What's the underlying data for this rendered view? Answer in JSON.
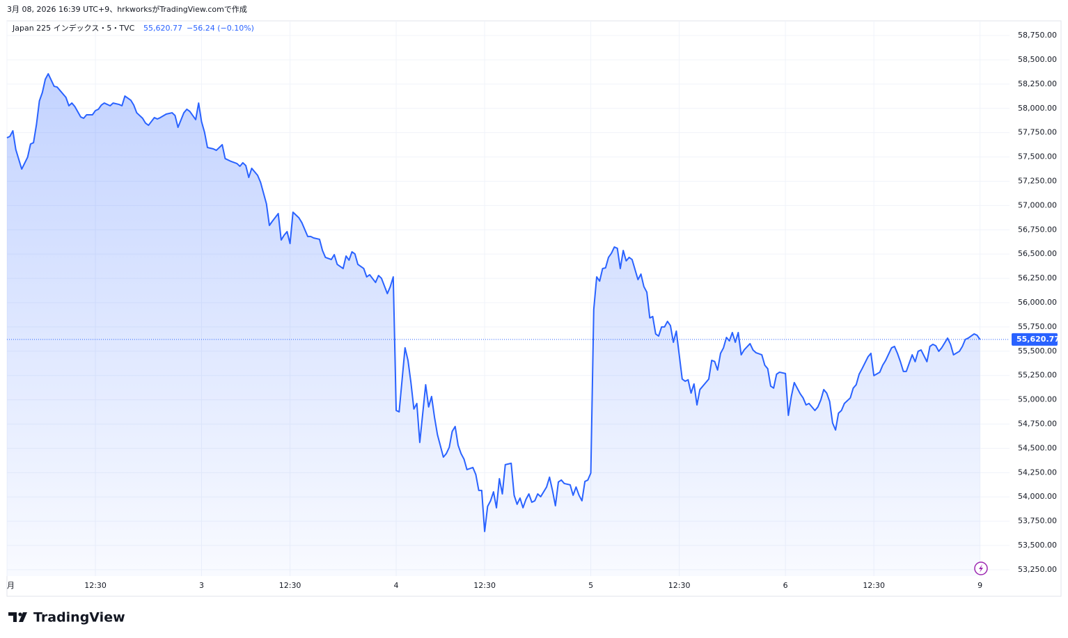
{
  "caption": "3月 08, 2026 16:39 UTC+9、hrkworksがTradingView.comで作成",
  "header": {
    "symbol": "Japan 225 インデックス・5・TVC",
    "change": "−56.24 (−0.10%)"
  },
  "footer": {
    "brand": "TradingView"
  },
  "chart_data": {
    "type": "area",
    "x": [
      0,
      1,
      2,
      3,
      5,
      7,
      8,
      9,
      10,
      11,
      12,
      13,
      14,
      16,
      17,
      18,
      20,
      21,
      22,
      23,
      25,
      26,
      27,
      29,
      30,
      31,
      32,
      33,
      35,
      36,
      38,
      39,
      40,
      42,
      43,
      44,
      46,
      47,
      48,
      50,
      51,
      52,
      54,
      56,
      57,
      58,
      60,
      61,
      62,
      64,
      65,
      66,
      67,
      68,
      70,
      71,
      73,
      74,
      76,
      78,
      79,
      80,
      81,
      82,
      83,
      85,
      86,
      88,
      89,
      90,
      92,
      93,
      94,
      95,
      96,
      97,
      99,
      100,
      102,
      103,
      104,
      106,
      107,
      108,
      110,
      111,
      112,
      114,
      115,
      116,
      117,
      118,
      119,
      121,
      122,
      123,
      125,
      126,
      127,
      129,
      130,
      131,
      132,
      133,
      135,
      136,
      137,
      138,
      139,
      140,
      142,
      143,
      144,
      145,
      146,
      148,
      149,
      150,
      151,
      152,
      153,
      154,
      155,
      156,
      158,
      159,
      160,
      161,
      162,
      163,
      164,
      165,
      166,
      167,
      168,
      169,
      171,
      172,
      173,
      174,
      175,
      176,
      177,
      178,
      179,
      180,
      181,
      183,
      184,
      185,
      186,
      187,
      188,
      189,
      191,
      192,
      193,
      194,
      195,
      196,
      197,
      198,
      199,
      200,
      201,
      202,
      203,
      204,
      205,
      206,
      207,
      208,
      209,
      210,
      211,
      212,
      214,
      215,
      216,
      217,
      218,
      219,
      220,
      221,
      222,
      223,
      224,
      225,
      226,
      227,
      229,
      230,
      231,
      232,
      233,
      234,
      235,
      237,
      238,
      239,
      240,
      241,
      242,
      243,
      244,
      245,
      246,
      247,
      248,
      249,
      250,
      252,
      253,
      254,
      256,
      257,
      258,
      259,
      260,
      261,
      262,
      264,
      265,
      266,
      267,
      268,
      269,
      270,
      271,
      272,
      274,
      275,
      276,
      277,
      278,
      279,
      280,
      281,
      282,
      283,
      284,
      286,
      287,
      288,
      289,
      290,
      292,
      293,
      294,
      296,
      297,
      298,
      300,
      301,
      302,
      303,
      304,
      305,
      307,
      308,
      309,
      310,
      312,
      313,
      314,
      315,
      316,
      317,
      319,
      320,
      321,
      323,
      324,
      325,
      326,
      328,
      329,
      330
    ],
    "series": [
      {
        "color": "#2962ff",
        "values": [
          57697,
          57712,
          57769,
          57576,
          57375,
          57497,
          57633,
          57647,
          57833,
          58077,
          58163,
          58299,
          58356,
          58227,
          58220,
          58184,
          58113,
          58027,
          58055,
          58020,
          57912,
          57898,
          57934,
          57934,
          57977,
          57991,
          58034,
          58055,
          58027,
          58055,
          58041,
          58027,
          58127,
          58084,
          58034,
          57955,
          57898,
          57848,
          57826,
          57905,
          57891,
          57905,
          57941,
          57955,
          57927,
          57805,
          57955,
          57991,
          57969,
          57884,
          58055,
          57862,
          57755,
          57597,
          57583,
          57568,
          57626,
          57483,
          57454,
          57432,
          57404,
          57440,
          57411,
          57289,
          57383,
          57311,
          57239,
          57017,
          56795,
          56838,
          56917,
          56645,
          56695,
          56731,
          56609,
          56931,
          56874,
          56824,
          56681,
          56681,
          56666,
          56652,
          56537,
          56466,
          56444,
          56494,
          56394,
          56351,
          56480,
          56437,
          56523,
          56502,
          56394,
          56351,
          56265,
          56287,
          56208,
          56279,
          56251,
          56093,
          56165,
          56265,
          54890,
          54876,
          55535,
          55406,
          55177,
          54905,
          54962,
          54561,
          55155,
          54926,
          55034,
          54819,
          54640,
          54410,
          54446,
          54511,
          54675,
          54725,
          54532,
          54446,
          54389,
          54281,
          54303,
          54231,
          54067,
          54067,
          53644,
          53902,
          53960,
          54052,
          53888,
          54188,
          54031,
          54332,
          54346,
          54017,
          53924,
          53988,
          53888,
          53974,
          54031,
          53945,
          53960,
          54031,
          54002,
          54102,
          54203,
          54067,
          53909,
          54153,
          54174,
          54138,
          54124,
          54017,
          54102,
          54017,
          53960,
          54159,
          54174,
          54246,
          55929,
          56265,
          56222,
          56351,
          56358,
          56466,
          56509,
          56573,
          56559,
          56351,
          56537,
          56430,
          56466,
          56444,
          56237,
          56294,
          56165,
          56108,
          55843,
          55857,
          55678,
          55656,
          55750,
          55750,
          55807,
          55764,
          55592,
          55707,
          55213,
          55191,
          55206,
          55069,
          55163,
          54947,
          55105,
          55177,
          55213,
          55406,
          55394,
          55306,
          55478,
          55535,
          55642,
          55606,
          55692,
          55592,
          55692,
          55463,
          55513,
          55578,
          55513,
          55485,
          55463,
          55356,
          55320,
          55141,
          55120,
          55263,
          55284,
          55270,
          54840,
          55034,
          55177,
          55120,
          55063,
          55019,
          54947,
          54962,
          54890,
          54926,
          54998,
          55105,
          55069,
          54983,
          54761,
          54689,
          54862,
          54890,
          54962,
          55019,
          55120,
          55155,
          55263,
          55320,
          55442,
          55478,
          55249,
          55284,
          55356,
          55406,
          55535,
          55549,
          55478,
          55392,
          55292,
          55292,
          55463,
          55392,
          55499,
          55513,
          55392,
          55549,
          55571,
          55556,
          55499,
          55535,
          55635,
          55571,
          55463,
          55499,
          55549,
          55621,
          55635,
          55678,
          55664,
          55620.77
        ]
      }
    ],
    "last_price": {
      "value": 55620.77,
      "label": "55,620.77"
    },
    "xlim": [
      0,
      340
    ],
    "xticks": [
      {
        "value": 0,
        "label": "月"
      },
      {
        "value": 30,
        "label": "12:30"
      },
      {
        "value": 66,
        "label": "3"
      },
      {
        "value": 96,
        "label": "12:30"
      },
      {
        "value": 132,
        "label": "4"
      },
      {
        "value": 162,
        "label": "12:30"
      },
      {
        "value": 198,
        "label": "5"
      },
      {
        "value": 228,
        "label": "12:30"
      },
      {
        "value": 264,
        "label": "6"
      },
      {
        "value": 294,
        "label": "12:30"
      },
      {
        "value": 330,
        "label": "9"
      }
    ],
    "ylim": [
      53185,
      58865
    ],
    "yticks": [
      {
        "value": 53250,
        "label": "53,250.00"
      },
      {
        "value": 53500,
        "label": "53,500.00"
      },
      {
        "value": 53750,
        "label": "53,750.00"
      },
      {
        "value": 54000,
        "label": "54,000.00"
      },
      {
        "value": 54250,
        "label": "54,250.00"
      },
      {
        "value": 54500,
        "label": "54,500.00"
      },
      {
        "value": 54750,
        "label": "54,750.00"
      },
      {
        "value": 55000,
        "label": "55,000.00"
      },
      {
        "value": 55250,
        "label": "55,250.00"
      },
      {
        "value": 55500,
        "label": "55,500.00"
      },
      {
        "value": 55750,
        "label": "55,750.00"
      },
      {
        "value": 56000,
        "label": "56,000.00"
      },
      {
        "value": 56250,
        "label": "56,250.00"
      },
      {
        "value": 56500,
        "label": "56,500.00"
      },
      {
        "value": 56750,
        "label": "56,750.00"
      },
      {
        "value": 57000,
        "label": "57,000.00"
      },
      {
        "value": 57250,
        "label": "57,250.00"
      },
      {
        "value": 57500,
        "label": "57,500.00"
      },
      {
        "value": 57750,
        "label": "57,750.00"
      },
      {
        "value": 58000,
        "label": "58,000.00"
      },
      {
        "value": 58250,
        "label": "58,250.00"
      },
      {
        "value": 58500,
        "label": "58,500.00"
      },
      {
        "value": 58750,
        "label": "58,750.00"
      }
    ],
    "grid": true
  }
}
